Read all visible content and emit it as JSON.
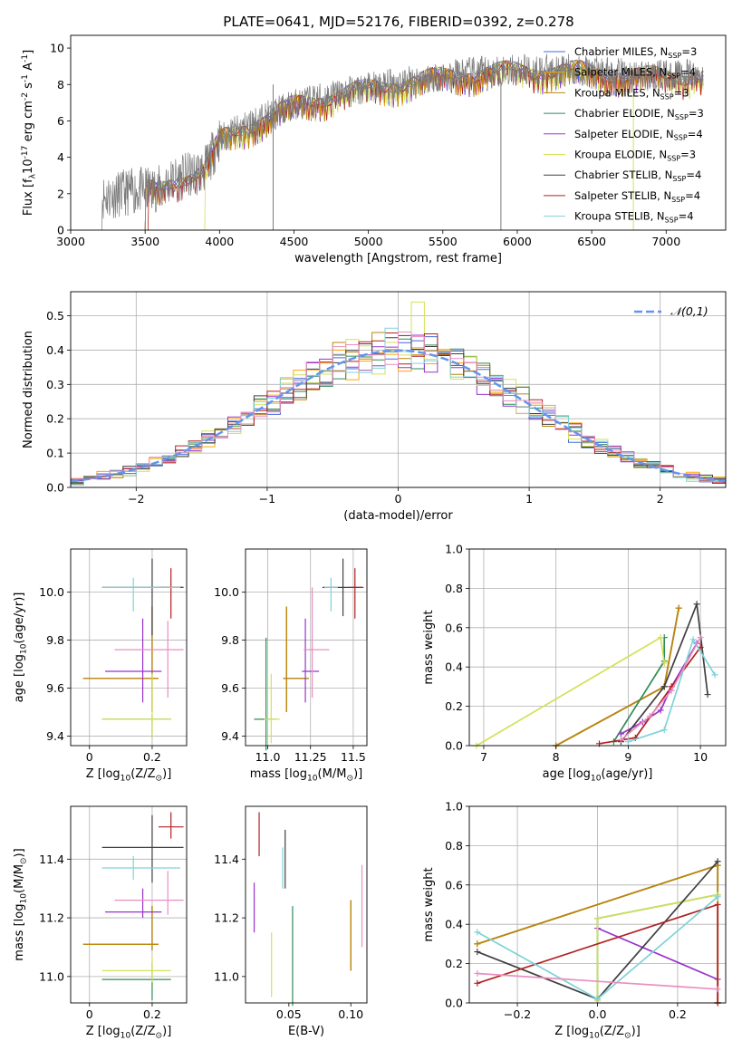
{
  "title": "PLATE=0641, MJD=52176, FIBERID=0392, z=0.278",
  "models": [
    {
      "label": "Chabrier MILES, N$_{SSP}$=3",
      "color": "#4169e1"
    },
    {
      "label": "Salpeter MILES, N$_{SSP}$=4",
      "color": "#ffa500"
    },
    {
      "label": "Kroupa MILES, N$_{SSP}$=3",
      "color": "#b8860b"
    },
    {
      "label": "Chabrier ELODIE, N$_{SSP}$=3",
      "color": "#2e8b57"
    },
    {
      "label": "Salpeter ELODIE, N$_{SSP}$=4",
      "color": "#9932cc"
    },
    {
      "label": "Kroupa ELODIE, N$_{SSP}$=3",
      "color": "#d4e157"
    },
    {
      "label": "Chabrier STELIB, N$_{SSP}$=4",
      "color": "#404040"
    },
    {
      "label": "Salpeter STELIB, N$_{SSP}$=4",
      "color": "#b22222"
    },
    {
      "label": "Kroupa STELIB, N$_{SSP}$=4",
      "color": "#7fd3d8"
    }
  ],
  "chart_data": [
    {
      "id": "spectrum",
      "type": "line",
      "xlabel": "wavelength [Angstrom, rest frame]",
      "ylabel": "Flux [f$_λ$10$^{-17}$ erg cm$^{-2}$ s$^{-1}$ A$^{-1}$]",
      "xlim": [
        3000,
        7400
      ],
      "ylim": [
        0,
        10.7
      ],
      "xticks": [
        3000,
        3500,
        4000,
        4500,
        5000,
        5500,
        6000,
        6500,
        7000
      ],
      "yticks": [
        0,
        2,
        4,
        6,
        8,
        10
      ],
      "continuum": {
        "x": [
          3210,
          3400,
          3600,
          3700,
          3800,
          3900,
          4000,
          4200,
          4500,
          4800,
          5200,
          5600,
          6000,
          6400,
          6800,
          7200
        ],
        "y": [
          1.8,
          2.1,
          2.3,
          2.8,
          3.0,
          3.3,
          5.0,
          5.8,
          6.9,
          7.5,
          8.1,
          8.6,
          8.8,
          8.8,
          8.5,
          8.5
        ]
      },
      "legend_loc": "upper right",
      "grid": false
    },
    {
      "id": "residuals",
      "type": "histogram",
      "xlabel": "(data-model)/error",
      "ylabel": "Normed distribution",
      "xlim": [
        -2.5,
        2.5
      ],
      "ylim": [
        0,
        0.57
      ],
      "xticks": [
        -2,
        -1,
        0,
        1,
        2
      ],
      "yticks": [
        0,
        0.1,
        0.2,
        0.3,
        0.4,
        0.5
      ],
      "reference": {
        "label": "$\\mathcal{N}(0,1)$",
        "mean": 0,
        "sigma": 1,
        "color": "#6495ed"
      },
      "bins": {
        "start": -2.5,
        "width": 0.1,
        "count": 50
      },
      "legend_loc": "upper right",
      "grid": true
    },
    {
      "id": "Z-age",
      "type": "errorbar",
      "xlabel": "Z [log$_{10}$(Z/Z$_⊙$)]",
      "ylabel": "age  [log$_{10}$(age/yr)]",
      "xlim": [
        -0.06,
        0.31
      ],
      "ylim": [
        9.36,
        10.18
      ],
      "xticks": [
        0,
        0.2
      ],
      "yticks": [
        9.4,
        9.6,
        9.8,
        10.0
      ],
      "grid": true,
      "points": [
        {
          "x": 0.2,
          "y": 9.64,
          "xerr": [
            0.22,
            0.02
          ],
          "yerr": [
            0.14,
            0.3
          ]
        },
        {
          "x": 0.2,
          "y": 9.64,
          "xerr": [
            0.22,
            0.02
          ],
          "yerr": [
            0.14,
            0.3
          ]
        },
        {
          "x": 0.2,
          "y": 9.64,
          "xerr": [
            0.22,
            0.02
          ],
          "yerr": [
            0.14,
            0.3
          ]
        },
        {
          "x": 0.2,
          "y": 9.47,
          "xerr": [
            0.16,
            0.06
          ],
          "yerr": [
            0.08,
            0.02
          ]
        },
        {
          "x": 0.17,
          "y": 9.67,
          "xerr": [
            0.12,
            0.06
          ],
          "yerr": [
            0.13,
            0.22
          ]
        },
        {
          "x": 0.2,
          "y": 9.47,
          "xerr": [
            0.16,
            0.06
          ],
          "yerr": [
            0.08,
            0.19
          ]
        },
        {
          "x": 0.2,
          "y": 10.02,
          "xerr": [
            0.16,
            0.1
          ],
          "yerr": [
            0.2,
            0.12
          ]
        },
        {
          "x": 0.26,
          "y": 10.02,
          "xerr": [
            0.04,
            0.04
          ],
          "yerr": [
            0.13,
            0.08
          ]
        },
        {
          "x": 0.14,
          "y": 10.02,
          "xerr": [
            0.1,
            0.15
          ],
          "yerr": [
            0.1,
            0.04
          ]
        },
        {
          "x": 0.25,
          "y": 9.76,
          "xerr": [
            0.17,
            0.05
          ],
          "yerr": [
            0.2,
            0.12
          ]
        }
      ]
    },
    {
      "id": "mass-age",
      "type": "errorbar",
      "xlabel": "mass [log$_{10}$(M/M$_⊙$)]",
      "ylabel": "",
      "xlim": [
        10.87,
        11.58
      ],
      "ylim": [
        9.36,
        10.18
      ],
      "xticks": [
        11.0,
        11.25,
        11.5
      ],
      "yticks": [
        9.4,
        9.6,
        9.8,
        10.0
      ],
      "grid": true,
      "points": [
        {
          "x": 11.11,
          "y": 9.64,
          "xerr": [
            0.02,
            0.13
          ],
          "yerr": [
            0.14,
            0.3
          ]
        },
        {
          "x": 11.11,
          "y": 9.64,
          "xerr": [
            0.02,
            0.13
          ],
          "yerr": [
            0.14,
            0.3
          ]
        },
        {
          "x": 11.11,
          "y": 9.64,
          "xerr": [
            0.02,
            0.13
          ],
          "yerr": [
            0.14,
            0.3
          ]
        },
        {
          "x": 10.99,
          "y": 9.47,
          "xerr": [
            0.07,
            0.06
          ],
          "yerr": [
            0.13,
            0.34
          ]
        },
        {
          "x": 11.22,
          "y": 9.67,
          "xerr": [
            0.02,
            0.08
          ],
          "yerr": [
            0.13,
            0.22
          ]
        },
        {
          "x": 11.02,
          "y": 9.47,
          "xerr": [
            0.04,
            0.05
          ],
          "yerr": [
            0.1,
            0.19
          ]
        },
        {
          "x": 11.44,
          "y": 10.02,
          "xerr": [
            0.12,
            0.11
          ],
          "yerr": [
            0.12,
            0.12
          ]
        },
        {
          "x": 11.51,
          "y": 10.02,
          "xerr": [
            0.04,
            0.05
          ],
          "yerr": [
            0.13,
            0.08
          ]
        },
        {
          "x": 11.37,
          "y": 10.02,
          "xerr": [
            0.04,
            0.04
          ],
          "yerr": [
            0.1,
            0.04
          ]
        },
        {
          "x": 11.26,
          "y": 9.76,
          "xerr": [
            0.05,
            0.1
          ],
          "yerr": [
            0.2,
            0.26
          ]
        }
      ]
    },
    {
      "id": "age-weight",
      "type": "line",
      "xlabel": "age  [log$_{10}$(age/yr)]",
      "ylabel": "mass weight",
      "xlim": [
        6.8,
        10.35
      ],
      "ylim": [
        0,
        1.0
      ],
      "xticks": [
        7,
        8,
        9,
        10
      ],
      "yticks": [
        0.0,
        0.2,
        0.4,
        0.6,
        0.8,
        1.0
      ],
      "grid": true,
      "series": [
        {
          "x": [
            8.0,
            9.5,
            9.7
          ],
          "y": [
            0.0,
            0.3,
            0.7
          ]
        },
        {
          "x": [
            8.0,
            9.5,
            9.7
          ],
          "y": [
            0.0,
            0.3,
            0.7
          ]
        },
        {
          "x": [
            8.0,
            9.5,
            9.7
          ],
          "y": [
            0.0,
            0.3,
            0.7
          ]
        },
        {
          "x": [
            8.8,
            9.5,
            9.5
          ],
          "y": [
            0.02,
            0.43,
            0.55
          ]
        },
        {
          "x": [
            8.9,
            9.2,
            9.45,
            9.6,
            9.95
          ],
          "y": [
            0.06,
            0.12,
            0.18,
            0.3,
            0.52
          ]
        },
        {
          "x": [
            6.9,
            9.45,
            9.5
          ],
          "y": [
            0.0,
            0.55,
            0.42
          ]
        },
        {
          "x": [
            8.9,
            9.5,
            9.95,
            10.1
          ],
          "y": [
            0.02,
            0.3,
            0.72,
            0.26
          ]
        },
        {
          "x": [
            8.6,
            9.1,
            9.6,
            10.0
          ],
          "y": [
            0.01,
            0.04,
            0.3,
            0.5
          ]
        },
        {
          "x": [
            9.0,
            9.5,
            9.9,
            10.2
          ],
          "y": [
            0.02,
            0.08,
            0.54,
            0.36
          ]
        },
        {
          "x": [
            8.9,
            9.3,
            9.6,
            10.0
          ],
          "y": [
            0.03,
            0.15,
            0.28,
            0.55
          ]
        }
      ]
    },
    {
      "id": "Z-mass",
      "type": "errorbar",
      "xlabel": "Z [log$_{10}$(Z/Z$_⊙$)]",
      "ylabel": "mass [log$_{10}$(M/M$_⊙$)]",
      "xlim": [
        -0.06,
        0.31
      ],
      "ylim": [
        10.91,
        11.58
      ],
      "xticks": [
        0,
        0.2
      ],
      "yticks": [
        11.0,
        11.2,
        11.4
      ],
      "grid": true,
      "points": [
        {
          "x": 0.2,
          "y": 11.11,
          "xerr": [
            0.22,
            0.02
          ],
          "yerr": [
            0.02,
            0.13
          ]
        },
        {
          "x": 0.2,
          "y": 11.11,
          "xerr": [
            0.22,
            0.02
          ],
          "yerr": [
            0.02,
            0.13
          ]
        },
        {
          "x": 0.2,
          "y": 11.11,
          "xerr": [
            0.22,
            0.02
          ],
          "yerr": [
            0.02,
            0.13
          ]
        },
        {
          "x": 0.2,
          "y": 10.99,
          "xerr": [
            0.16,
            0.06
          ],
          "yerr": [
            0.07,
            0.06
          ]
        },
        {
          "x": 0.17,
          "y": 11.22,
          "xerr": [
            0.12,
            0.06
          ],
          "yerr": [
            0.02,
            0.08
          ]
        },
        {
          "x": 0.2,
          "y": 11.02,
          "xerr": [
            0.16,
            0.06
          ],
          "yerr": [
            0.04,
            0.05
          ]
        },
        {
          "x": 0.2,
          "y": 11.44,
          "xerr": [
            0.16,
            0.1
          ],
          "yerr": [
            0.12,
            0.11
          ]
        },
        {
          "x": 0.26,
          "y": 11.51,
          "xerr": [
            0.04,
            0.04
          ],
          "yerr": [
            0.04,
            0.05
          ]
        },
        {
          "x": 0.14,
          "y": 11.37,
          "xerr": [
            0.1,
            0.15
          ],
          "yerr": [
            0.04,
            0.04
          ]
        },
        {
          "x": 0.25,
          "y": 11.26,
          "xerr": [
            0.17,
            0.05
          ],
          "yerr": [
            0.05,
            0.1
          ]
        }
      ]
    },
    {
      "id": "ebv-mass",
      "type": "errorbar",
      "xlabel": "E(B-V)",
      "ylabel": "",
      "xlim": [
        0.015,
        0.113
      ],
      "ylim": [
        10.91,
        11.58
      ],
      "xticks": [
        0.05,
        0.1
      ],
      "yticks": [
        11.0,
        11.2,
        11.4
      ],
      "grid": false,
      "points": [
        {
          "x": 0.1,
          "y": 11.14,
          "yerr": [
            0.12,
            0.12
          ]
        },
        {
          "x": 0.1,
          "y": 11.14,
          "yerr": [
            0.12,
            0.12
          ]
        },
        {
          "x": 0.1,
          "y": 11.14,
          "yerr": [
            0.12,
            0.12
          ]
        },
        {
          "x": 0.053,
          "y": 11.07,
          "yerr": [
            0.17,
            0.17
          ]
        },
        {
          "x": 0.022,
          "y": 11.24,
          "yerr": [
            0.09,
            0.08
          ]
        },
        {
          "x": 0.036,
          "y": 11.04,
          "yerr": [
            0.11,
            0.11
          ]
        },
        {
          "x": 0.047,
          "y": 11.4,
          "yerr": [
            0.1,
            0.1
          ]
        },
        {
          "x": 0.026,
          "y": 11.48,
          "yerr": [
            0.07,
            0.08
          ]
        },
        {
          "x": 0.045,
          "y": 11.37,
          "yerr": [
            0.07,
            0.07
          ]
        },
        {
          "x": 0.109,
          "y": 11.24,
          "yerr": [
            0.14,
            0.14
          ]
        }
      ]
    },
    {
      "id": "Z-weight",
      "type": "line",
      "xlabel": "Z [log$_{10}$(Z/Z$_⊙$)]",
      "ylabel": "mass weight",
      "xlim": [
        -0.32,
        0.32
      ],
      "ylim": [
        0,
        1.0
      ],
      "xticks": [
        -0.2,
        0.0,
        0.2
      ],
      "yticks": [
        0.0,
        0.2,
        0.4,
        0.6,
        0.8,
        1.0
      ],
      "grid": true,
      "series": [
        {
          "x": [
            -0.3,
            0.3,
            0.3
          ],
          "y": [
            0.3,
            0.7,
            0.0
          ]
        },
        {
          "x": [
            -0.3,
            0.3,
            0.3
          ],
          "y": [
            0.3,
            0.7,
            0.0
          ]
        },
        {
          "x": [
            -0.3,
            0.3,
            0.3
          ],
          "y": [
            0.3,
            0.7,
            0.0
          ]
        },
        {
          "x": [
            0.0,
            0.0,
            0.3
          ],
          "y": [
            0.02,
            0.43,
            0.55
          ]
        },
        {
          "x": [
            0.0,
            0.3,
            0.3
          ],
          "y": [
            0.38,
            0.12,
            0.0
          ]
        },
        {
          "x": [
            0.0,
            0.0,
            0.3,
            0.3
          ],
          "y": [
            0.01,
            0.43,
            0.55,
            0.0
          ]
        },
        {
          "x": [
            -0.3,
            0.0,
            0.3
          ],
          "y": [
            0.26,
            0.02,
            0.72
          ]
        },
        {
          "x": [
            -0.3,
            0.3,
            0.3
          ],
          "y": [
            0.1,
            0.5,
            0.0
          ]
        },
        {
          "x": [
            -0.3,
            0.0,
            0.3
          ],
          "y": [
            0.36,
            0.02,
            0.54
          ]
        },
        {
          "x": [
            -0.3,
            0.3
          ],
          "y": [
            0.15,
            0.07
          ]
        }
      ]
    }
  ]
}
